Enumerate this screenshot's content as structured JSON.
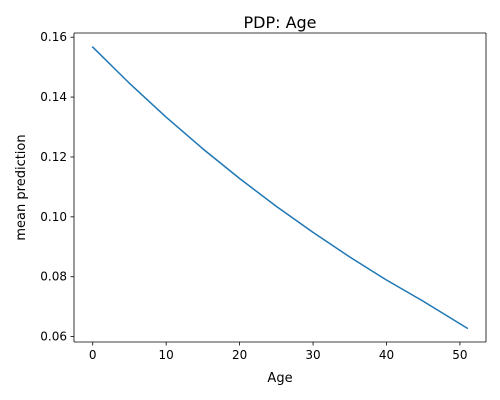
{
  "chart_data": {
    "type": "line",
    "title": "PDP: Age",
    "xlabel": "Age",
    "ylabel": "mean prediction",
    "xlim": [
      -2.55,
      53.55
    ],
    "ylim": [
      0.0582,
      0.1614
    ],
    "grid": false,
    "x_ticks": [
      0,
      10,
      20,
      30,
      40,
      50
    ],
    "x_tick_labels": [
      "0",
      "10",
      "20",
      "30",
      "40",
      "50"
    ],
    "y_ticks": [
      0.06,
      0.08,
      0.1,
      0.12,
      0.14,
      0.16
    ],
    "y_tick_labels": [
      "0.06",
      "0.08",
      "0.10",
      "0.12",
      "0.14",
      "0.16"
    ],
    "series": [
      {
        "color": "#1f77b4",
        "x": [
          0,
          5,
          10,
          15,
          20,
          25,
          30,
          35,
          40,
          45,
          51
        ],
        "y": [
          0.1567,
          0.1446,
          0.1333,
          0.1227,
          0.1128,
          0.1035,
          0.0948,
          0.0866,
          0.0789,
          0.0718,
          0.0628
        ]
      }
    ]
  }
}
